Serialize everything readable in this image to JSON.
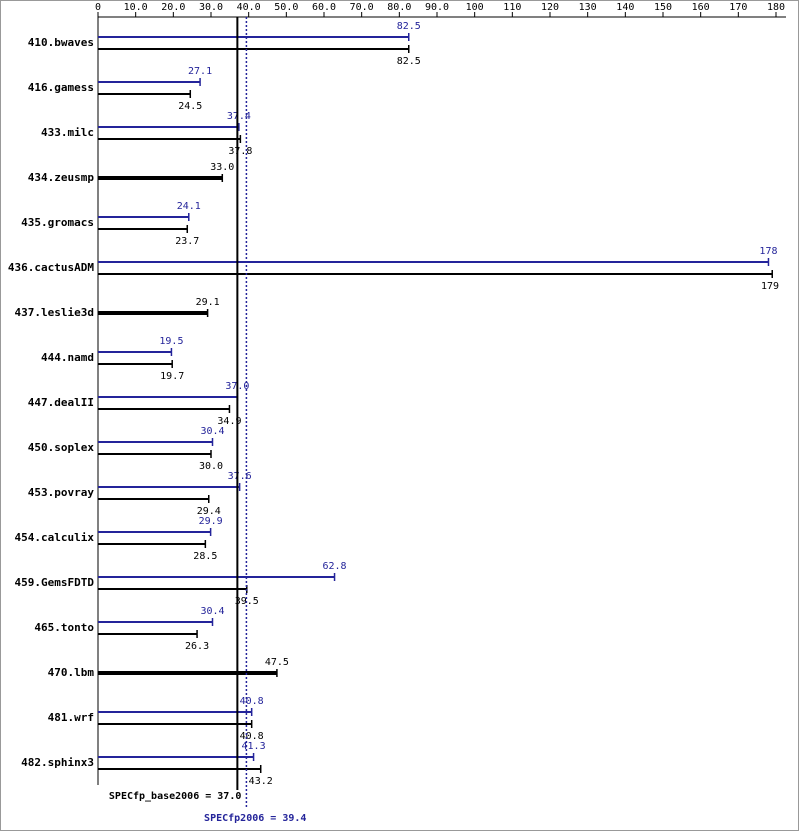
{
  "chart_data": {
    "type": "bar",
    "orientation": "horizontal",
    "categories": [
      "410.bwaves",
      "416.gamess",
      "433.milc",
      "434.zeusmp",
      "435.gromacs",
      "436.cactusADM",
      "437.leslie3d",
      "444.namd",
      "447.dealII",
      "450.soplex",
      "453.povray",
      "454.calculix",
      "459.GemsFDTD",
      "465.tonto",
      "470.lbm",
      "481.wrf",
      "482.sphinx3"
    ],
    "series": [
      {
        "color": "#24249a",
        "values": [
          82.5,
          27.1,
          37.4,
          null,
          24.1,
          178,
          null,
          19.5,
          37.0,
          30.4,
          37.6,
          29.9,
          62.8,
          30.4,
          null,
          40.8,
          41.3
        ],
        "value_labels": [
          "82.5",
          "27.1",
          "37.4",
          null,
          "24.1",
          "178",
          null,
          "19.5",
          "37.0",
          "30.4",
          "37.6",
          "29.9",
          "62.8",
          "30.4",
          null,
          "40.8",
          "41.3"
        ]
      },
      {
        "color": "#000000",
        "values": [
          82.5,
          24.5,
          37.8,
          33.0,
          23.7,
          179,
          29.1,
          19.7,
          34.9,
          30.0,
          29.4,
          28.5,
          39.5,
          26.3,
          47.5,
          40.8,
          43.2
        ],
        "value_labels": [
          "82.5",
          "24.5",
          "37.8",
          "33.0",
          "23.7",
          "179",
          "29.1",
          "19.7",
          "34.9",
          "30.0",
          "29.4",
          "28.5",
          "39.5",
          "26.3",
          "47.5",
          "40.8",
          "43.2"
        ]
      }
    ],
    "xlim": [
      0,
      180
    ],
    "xticks": [
      0,
      {
        "value": 10,
        "label": "10.0"
      },
      {
        "value": 20,
        "label": "20.0"
      },
      {
        "value": 30,
        "label": "30.0"
      },
      {
        "value": 40,
        "label": "40.0"
      },
      {
        "value": 50,
        "label": "50.0"
      },
      {
        "value": 60,
        "label": "60.0"
      },
      {
        "value": 70,
        "label": "70.0"
      },
      {
        "value": 80,
        "label": "80.0"
      },
      {
        "value": 90,
        "label": "90.0"
      },
      100,
      110,
      120,
      130,
      140,
      150,
      160,
      170,
      180
    ],
    "reference_lines": [
      {
        "label": "SPECfp_base2006 = 37.0",
        "value": 37.0,
        "color": "#000000",
        "style": "solid"
      },
      {
        "label": "SPECfp2006 = 39.4",
        "value": 39.4,
        "color": "#24249a",
        "style": "dotted"
      }
    ]
  }
}
